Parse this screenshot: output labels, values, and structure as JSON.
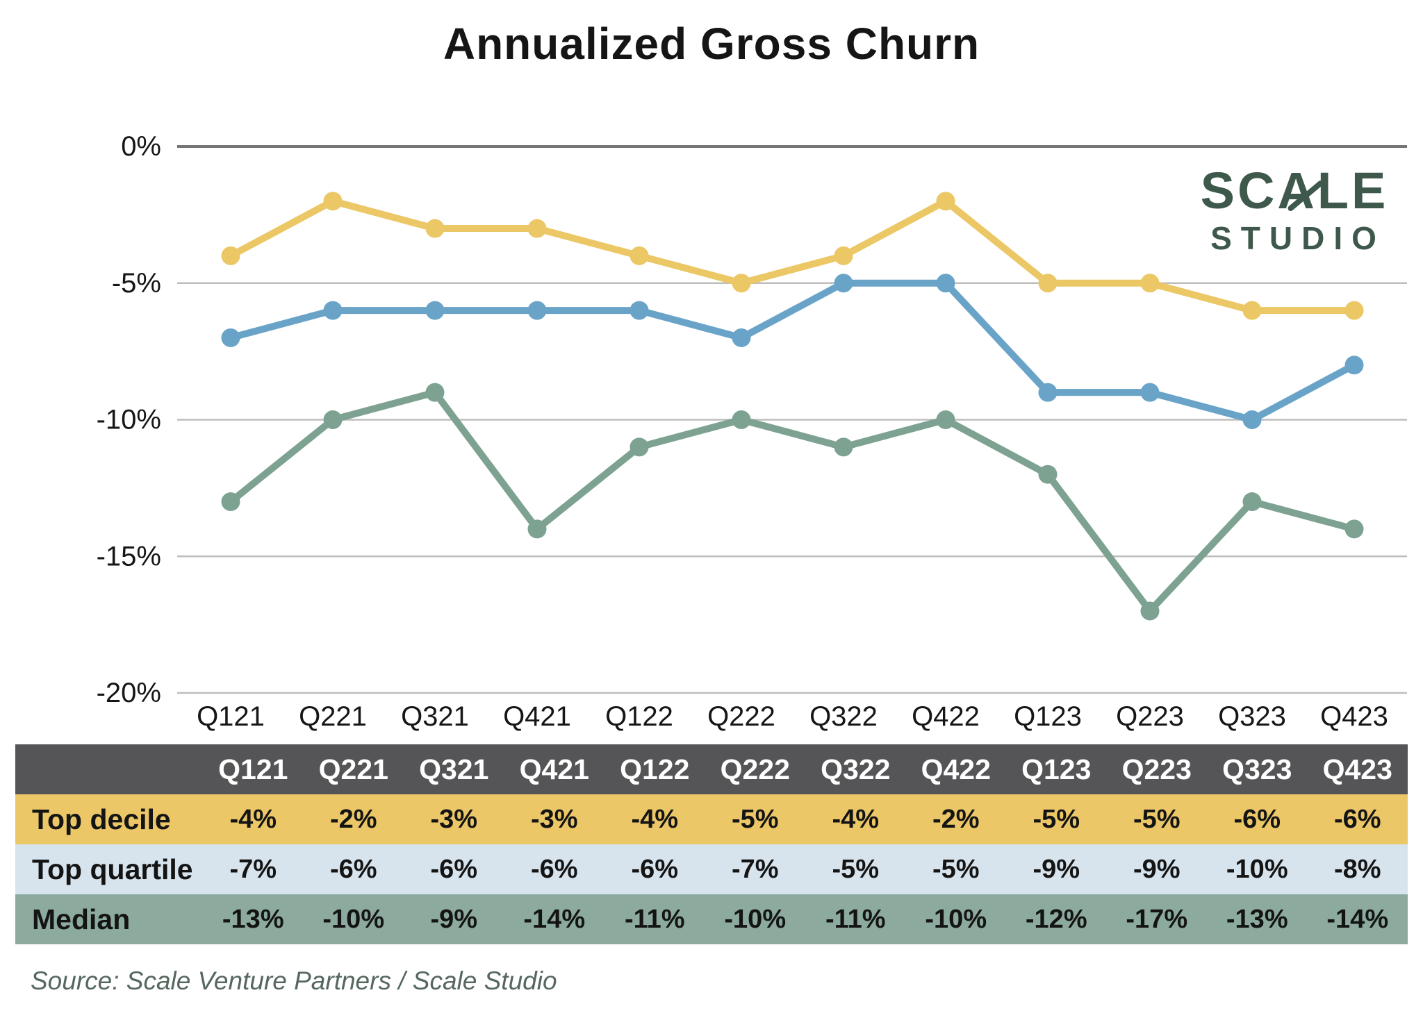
{
  "title": "Annualized Gross Churn",
  "logo": {
    "line1": "SCALE",
    "line2": "STUDIO"
  },
  "source": "Source: Scale Venture Partners / Scale Studio",
  "colors": {
    "grid": "#bdbdbd",
    "zero_line": "#757575",
    "axis_text": "#161616",
    "header_bg": "#555557",
    "header_text": "#ffffff",
    "cell_text": "#141414",
    "logo": "#3E584C",
    "source_text": "#55675E",
    "top_decile": "#ECC765",
    "top_quartile": "#69A4C8",
    "median": "#7DA291",
    "row_decile_bg": "#ECC768",
    "row_quartile_bg": "#D7E4EE",
    "row_median_bg": "#8CAB9E"
  },
  "chart_data": {
    "type": "line",
    "title": "Annualized Gross Churn",
    "categories": [
      "Q121",
      "Q221",
      "Q321",
      "Q421",
      "Q122",
      "Q222",
      "Q322",
      "Q422",
      "Q123",
      "Q223",
      "Q323",
      "Q423"
    ],
    "series": [
      {
        "name": "Top decile",
        "color": "#ECC765",
        "values": [
          -4,
          -2,
          -3,
          -3,
          -4,
          -5,
          -4,
          -2,
          -5,
          -5,
          -6,
          -6
        ]
      },
      {
        "name": "Top quartile",
        "color": "#69A4C8",
        "values": [
          -7,
          -6,
          -6,
          -6,
          -6,
          -7,
          -5,
          -5,
          -9,
          -9,
          -10,
          -8
        ]
      },
      {
        "name": "Median",
        "color": "#7DA291",
        "values": [
          -13,
          -10,
          -9,
          -14,
          -11,
          -10,
          -11,
          -10,
          -12,
          -17,
          -13,
          -14
        ]
      }
    ],
    "ylim": [
      -20,
      0
    ],
    "yticks": [
      0,
      -5,
      -10,
      -15,
      -20
    ],
    "ytick_labels": [
      "0%",
      "-5%",
      "-10%",
      "-15%",
      "-20%"
    ],
    "xlabel": "",
    "ylabel": "",
    "grid": true,
    "legend_position": "table-below"
  },
  "table": {
    "corner_label": "",
    "quarters": [
      "Q121",
      "Q221",
      "Q321",
      "Q421",
      "Q122",
      "Q222",
      "Q322",
      "Q422",
      "Q123",
      "Q223",
      "Q323",
      "Q423"
    ],
    "rows": [
      {
        "label": "Top decile",
        "bg": "#ECC768",
        "values": [
          "-4%",
          "-2%",
          "-3%",
          "-3%",
          "-4%",
          "-5%",
          "-4%",
          "-2%",
          "-5%",
          "-5%",
          "-6%",
          "-6%"
        ]
      },
      {
        "label": "Top quartile",
        "bg": "#D7E4EE",
        "values": [
          "-7%",
          "-6%",
          "-6%",
          "-6%",
          "-6%",
          "-7%",
          "-5%",
          "-5%",
          "-9%",
          "-9%",
          "-10%",
          "-8%"
        ]
      },
      {
        "label": "Median",
        "bg": "#8CAB9E",
        "values": [
          "-13%",
          "-10%",
          "-9%",
          "-14%",
          "-11%",
          "-10%",
          "-11%",
          "-10%",
          "-12%",
          "-17%",
          "-13%",
          "-14%"
        ]
      }
    ]
  }
}
